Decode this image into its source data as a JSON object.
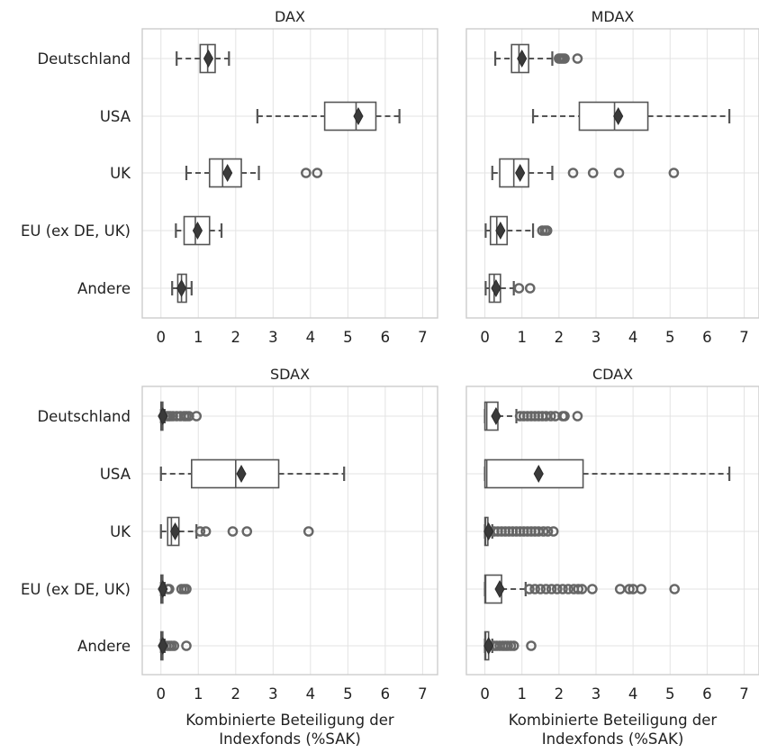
{
  "chart_data": [
    {
      "type": "boxplot",
      "title": "DAX",
      "xlabel": "",
      "xlim": [
        -0.5,
        7.4
      ],
      "xticks": [
        0,
        1,
        2,
        3,
        4,
        5,
        6,
        7
      ],
      "categories": [
        "Deutschland",
        "USA",
        "UK",
        "EU (ex DE, UK)",
        "Andere"
      ],
      "boxes": [
        {
          "whislo": 0.42,
          "q1": 1.05,
          "med": 1.25,
          "q3": 1.45,
          "whishi": 1.82,
          "mean": 1.27,
          "fliers": []
        },
        {
          "whislo": 2.58,
          "q1": 4.38,
          "med": 5.22,
          "q3": 5.75,
          "whishi": 6.38,
          "mean": 5.28,
          "fliers": []
        },
        {
          "whislo": 0.68,
          "q1": 1.3,
          "med": 1.65,
          "q3": 2.15,
          "whishi": 2.62,
          "mean": 1.78,
          "fliers": [
            3.88,
            4.18
          ]
        },
        {
          "whislo": 0.4,
          "q1": 0.62,
          "med": 0.92,
          "q3": 1.3,
          "whishi": 1.62,
          "mean": 0.98,
          "fliers": []
        },
        {
          "whislo": 0.3,
          "q1": 0.45,
          "med": 0.55,
          "q3": 0.68,
          "whishi": 0.82,
          "mean": 0.55,
          "fliers": []
        }
      ]
    },
    {
      "type": "boxplot",
      "title": "MDAX",
      "xlabel": "",
      "xlim": [
        -0.5,
        7.4
      ],
      "xticks": [
        0,
        1,
        2,
        3,
        4,
        5,
        6,
        7
      ],
      "categories": [
        "Deutschland",
        "USA",
        "UK",
        "EU (ex DE, UK)",
        "Andere"
      ],
      "boxes": [
        {
          "whislo": 0.28,
          "q1": 0.72,
          "med": 0.92,
          "q3": 1.18,
          "whishi": 1.82,
          "mean": 1.0,
          "fliers": [
            2.0,
            2.05,
            2.1,
            2.15,
            2.5
          ]
        },
        {
          "whislo": 1.3,
          "q1": 2.55,
          "med": 3.5,
          "q3": 4.4,
          "whishi": 6.6,
          "mean": 3.6,
          "fliers": []
        },
        {
          "whislo": 0.2,
          "q1": 0.4,
          "med": 0.78,
          "q3": 1.18,
          "whishi": 1.82,
          "mean": 0.95,
          "fliers": [
            2.38,
            2.92,
            3.62,
            5.1
          ]
        },
        {
          "whislo": 0.02,
          "q1": 0.15,
          "med": 0.32,
          "q3": 0.6,
          "whishi": 1.3,
          "mean": 0.42,
          "fliers": [
            1.55,
            1.62,
            1.68
          ]
        },
        {
          "whislo": 0.02,
          "q1": 0.12,
          "med": 0.25,
          "q3": 0.42,
          "whishi": 0.78,
          "mean": 0.3,
          "fliers": [
            0.92,
            1.22
          ]
        }
      ]
    },
    {
      "type": "boxplot",
      "title": "SDAX",
      "xlabel": "Kombinierte Beteiligung der Indexfonds (%SAK)",
      "xlim": [
        -0.5,
        7.4
      ],
      "xticks": [
        0,
        1,
        2,
        3,
        4,
        5,
        6,
        7
      ],
      "categories": [
        "Deutschland",
        "USA",
        "UK",
        "EU (ex DE, UK)",
        "Andere"
      ],
      "boxes": [
        {
          "whislo": 0.0,
          "q1": 0.0,
          "med": 0.02,
          "q3": 0.05,
          "whishi": 0.1,
          "mean": 0.05,
          "fliers": [
            0.15,
            0.2,
            0.25,
            0.32,
            0.42,
            0.52,
            0.62,
            0.68,
            0.75,
            0.95
          ]
        },
        {
          "whislo": 0.0,
          "q1": 0.82,
          "med": 2.0,
          "q3": 3.15,
          "whishi": 4.9,
          "mean": 2.15,
          "fliers": []
        },
        {
          "whislo": 0.0,
          "q1": 0.18,
          "med": 0.28,
          "q3": 0.48,
          "whishi": 0.95,
          "mean": 0.38,
          "fliers": [
            1.05,
            1.2,
            1.92,
            2.3,
            3.95
          ]
        },
        {
          "whislo": 0.0,
          "q1": 0.0,
          "med": 0.02,
          "q3": 0.05,
          "whishi": 0.1,
          "mean": 0.05,
          "fliers": [
            0.18,
            0.22,
            0.55,
            0.62,
            0.68
          ]
        },
        {
          "whislo": 0.0,
          "q1": 0.0,
          "med": 0.02,
          "q3": 0.05,
          "whishi": 0.1,
          "mean": 0.05,
          "fliers": [
            0.15,
            0.22,
            0.28,
            0.35,
            0.68
          ]
        }
      ]
    },
    {
      "type": "boxplot",
      "title": "CDAX",
      "xlabel": "Kombinierte Beteiligung der Indexfonds (%SAK)",
      "xlim": [
        -0.5,
        7.4
      ],
      "xticks": [
        0,
        1,
        2,
        3,
        4,
        5,
        6,
        7
      ],
      "categories": [
        "Deutschland",
        "USA",
        "UK",
        "EU (ex DE, UK)",
        "Andere"
      ],
      "boxes": [
        {
          "whislo": 0.0,
          "q1": 0.0,
          "med": 0.05,
          "q3": 0.35,
          "whishi": 0.85,
          "mean": 0.3,
          "fliers": [
            0.95,
            1.05,
            1.15,
            1.25,
            1.35,
            1.45,
            1.55,
            1.65,
            1.78,
            1.9,
            2.1,
            2.15,
            2.5
          ]
        },
        {
          "whislo": 0.0,
          "q1": 0.0,
          "med": 0.05,
          "q3": 2.65,
          "whishi": 6.6,
          "mean": 1.45,
          "fliers": []
        },
        {
          "whislo": 0.0,
          "q1": 0.0,
          "med": 0.02,
          "q3": 0.08,
          "whishi": 0.2,
          "mean": 0.1,
          "fliers": [
            0.25,
            0.35,
            0.45,
            0.55,
            0.65,
            0.75,
            0.85,
            0.95,
            1.05,
            1.15,
            1.25,
            1.35,
            1.45,
            1.58,
            1.7,
            1.85
          ]
        },
        {
          "whislo": 0.0,
          "q1": 0.0,
          "med": 0.02,
          "q3": 0.45,
          "whishi": 1.1,
          "mean": 0.4,
          "fliers": [
            1.2,
            1.35,
            1.5,
            1.65,
            1.8,
            1.95,
            2.1,
            2.25,
            2.4,
            2.52,
            2.62,
            2.9,
            3.65,
            3.9,
            4.0,
            4.22,
            5.12
          ]
        },
        {
          "whislo": 0.0,
          "q1": 0.0,
          "med": 0.02,
          "q3": 0.1,
          "whishi": 0.2,
          "mean": 0.1,
          "fliers": [
            0.25,
            0.32,
            0.4,
            0.48,
            0.55,
            0.62,
            0.7,
            0.78,
            1.25
          ]
        }
      ]
    }
  ]
}
